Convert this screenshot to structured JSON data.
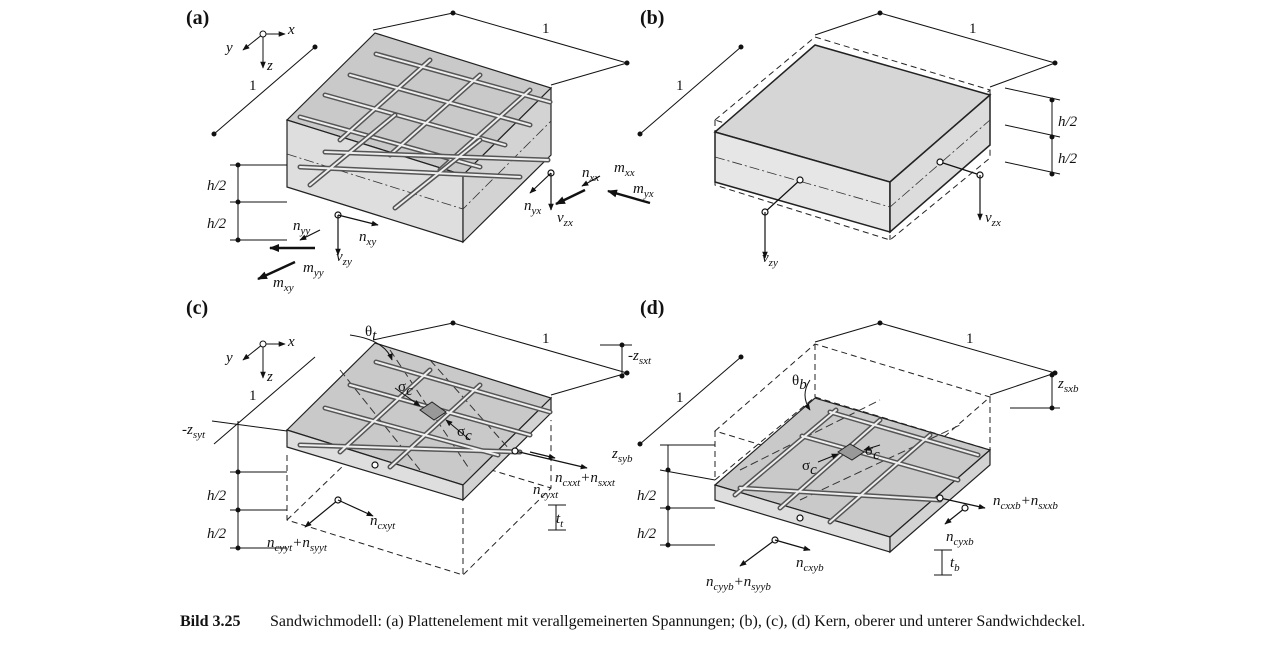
{
  "panels": [
    {
      "id": "a",
      "label": "(a)"
    },
    {
      "id": "b",
      "label": "(b)"
    },
    {
      "id": "c",
      "label": "(c)"
    },
    {
      "id": "d",
      "label": "(d)"
    }
  ],
  "axes": {
    "x": "x",
    "y": "y",
    "z": "z"
  },
  "dimensions": {
    "unit_length": "1",
    "half_thickness": "h/2"
  },
  "panel_a": {
    "forces": [
      "n",
      "m",
      "n",
      "m",
      "n",
      "v",
      "n",
      "n",
      "v",
      "n",
      "m",
      "m"
    ],
    "subscripts": [
      "xx",
      "xx",
      "yx",
      "yx",
      "yy",
      "zy",
      "xy",
      "yy",
      "zx",
      "yy",
      "xy",
      "yy"
    ]
  },
  "panel_b": {
    "shear_x": "v",
    "shear_x_sub": "zx",
    "shear_y": "v",
    "shear_y_sub": "zy"
  },
  "panel_c": {
    "angle": "θ",
    "angle_sub": "t",
    "stress": "σ",
    "stress_sub": "c",
    "z_top": "-z",
    "z_top_sub": "sxt",
    "z_side": "-z",
    "z_side_sub": "syt",
    "force_x": "n",
    "force_x_sub": "cxxt",
    "force_x_plus": "+n",
    "force_x_plus_sub": "sxxt",
    "force_yx": "n",
    "force_yx_sub": "cyxt",
    "force_xy": "n",
    "force_xy_sub": "cxyt",
    "force_y": "n",
    "force_y_sub": "cyyt",
    "force_y_plus": "+n",
    "force_y_plus_sub": "syyt",
    "thickness": "t",
    "thickness_sub": "t"
  },
  "panel_d": {
    "angle": "θ",
    "angle_sub": "b",
    "stress": "σ",
    "stress_sub": "c",
    "z_top": "z",
    "z_top_sub": "sxb",
    "z_side": "z",
    "z_side_sub": "syb",
    "force_x": "n",
    "force_x_sub": "cxxb",
    "force_x_plus": "+n",
    "force_x_plus_sub": "sxxb",
    "force_yx": "n",
    "force_yx_sub": "cyxb",
    "force_xy": "n",
    "force_xy_sub": "cxyb",
    "force_y": "n",
    "force_y_sub": "cyyb",
    "force_y_plus": "+n",
    "force_y_plus_sub": "syyb",
    "thickness": "t",
    "thickness_sub": "b"
  },
  "caption": {
    "number": "Bild 3.25",
    "text": "Sandwichmodell: (a) Plattenelement mit verallgemeinerten Spannungen; (b), (c), (d) Kern, oberer und unterer Sandwichdeckel."
  }
}
